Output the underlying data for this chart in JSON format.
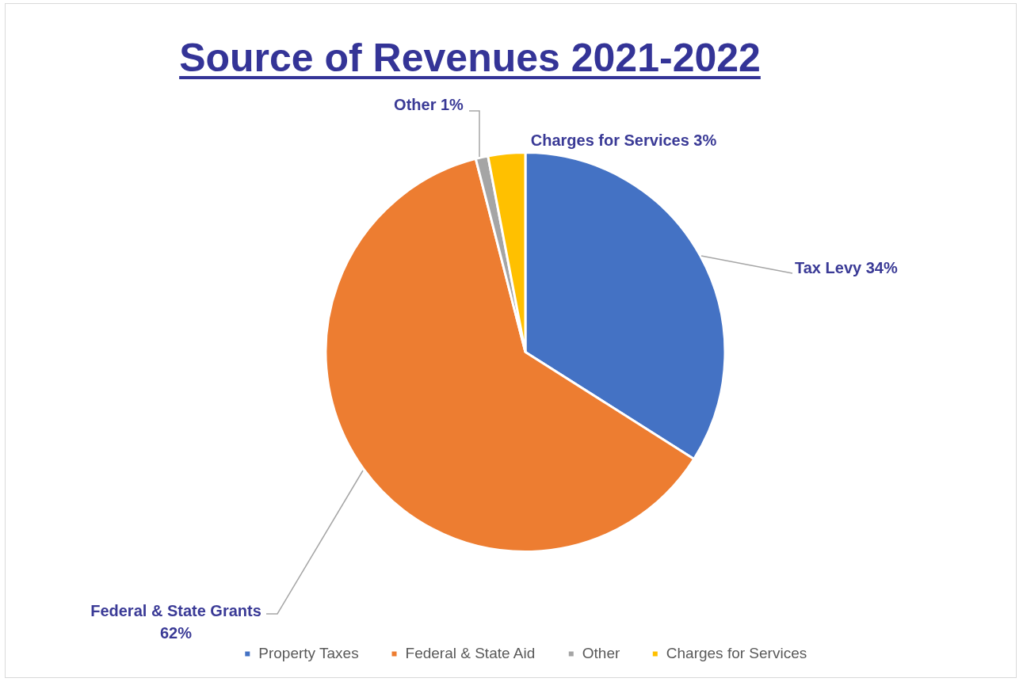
{
  "chart_data": {
    "type": "pie",
    "title": "Source of Revenues 2021-2022",
    "categories": [
      "Property Taxes",
      "Federal & State Aid",
      "Other",
      "Charges for Services"
    ],
    "values": [
      34,
      62,
      1,
      3
    ],
    "colors": [
      "#4472c4",
      "#ed7d31",
      "#a5a5a5",
      "#ffc000"
    ],
    "value_labels": [
      "Tax Levy 34%",
      "Federal & State Grants 62%",
      "Other 1%",
      "Charges for Services 3%"
    ],
    "legend": "bottom"
  }
}
